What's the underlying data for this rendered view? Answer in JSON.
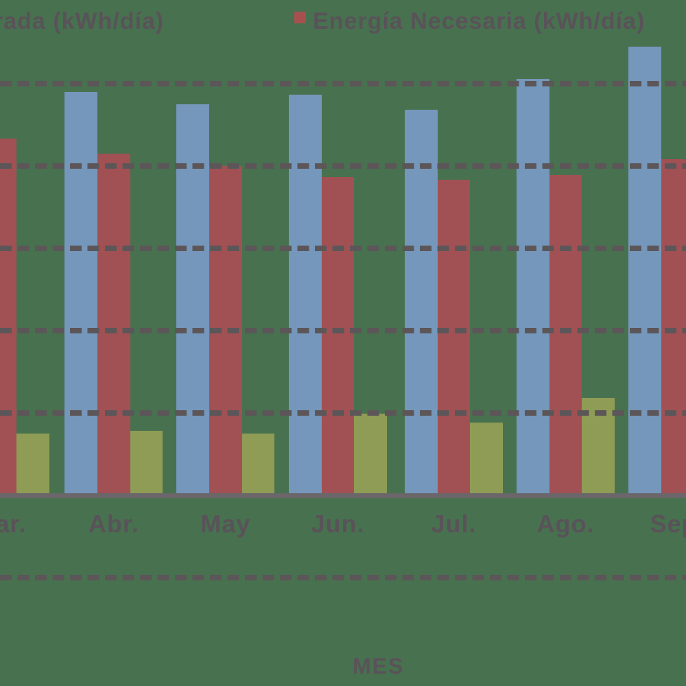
{
  "app": {
    "background_color": "#48714F",
    "text_color": "#595359",
    "gridline_color": "#5C5659",
    "axis_line_color": "#6A666A"
  },
  "legend": {
    "left_item": {
      "label": "rada (kWh/día)",
      "truncated_at_left_edge": true
    },
    "right_item": {
      "label": "Energía Necesaria (kWh/día)",
      "marker_color": "#A65050"
    }
  },
  "x_axis": {
    "title": "MES",
    "categories": [
      "Mar.",
      "Abr.",
      "May",
      "Jun.",
      "Jul.",
      "Ago.",
      "Sep."
    ]
  },
  "chart_data": {
    "type": "bar",
    "title": "",
    "xlabel": "MES",
    "ylabel": "",
    "categories": [
      "Mar.",
      "Abr.",
      "May",
      "Jun.",
      "Jul.",
      "Ago.",
      "Sep."
    ],
    "y_tick_labels_visible": false,
    "y_unit_note": "values measured in gridline units; y tick labels are cropped out of the image",
    "gridlines": {
      "style": "dashed",
      "on": true,
      "values_in_units": [
        5,
        4,
        3,
        2,
        1,
        -1
      ]
    },
    "legend_position": "top",
    "series": [
      {
        "id": "blue",
        "legend_label": "rada (kWh/día)",
        "color": "#7597BB",
        "values": [
          null,
          4.9,
          4.75,
          4.87,
          4.68,
          5.06,
          5.45
        ]
      },
      {
        "id": "red",
        "legend_label": "Energía Necesaria (kWh/día)",
        "color": "#A15153",
        "values": [
          4.33,
          4.15,
          4.0,
          3.87,
          3.83,
          3.89,
          4.08
        ]
      },
      {
        "id": "olive",
        "legend_label": null,
        "color": "#8F9C55",
        "values": [
          0.75,
          0.78,
          0.75,
          0.99,
          0.88,
          1.18,
          null
        ]
      }
    ]
  }
}
